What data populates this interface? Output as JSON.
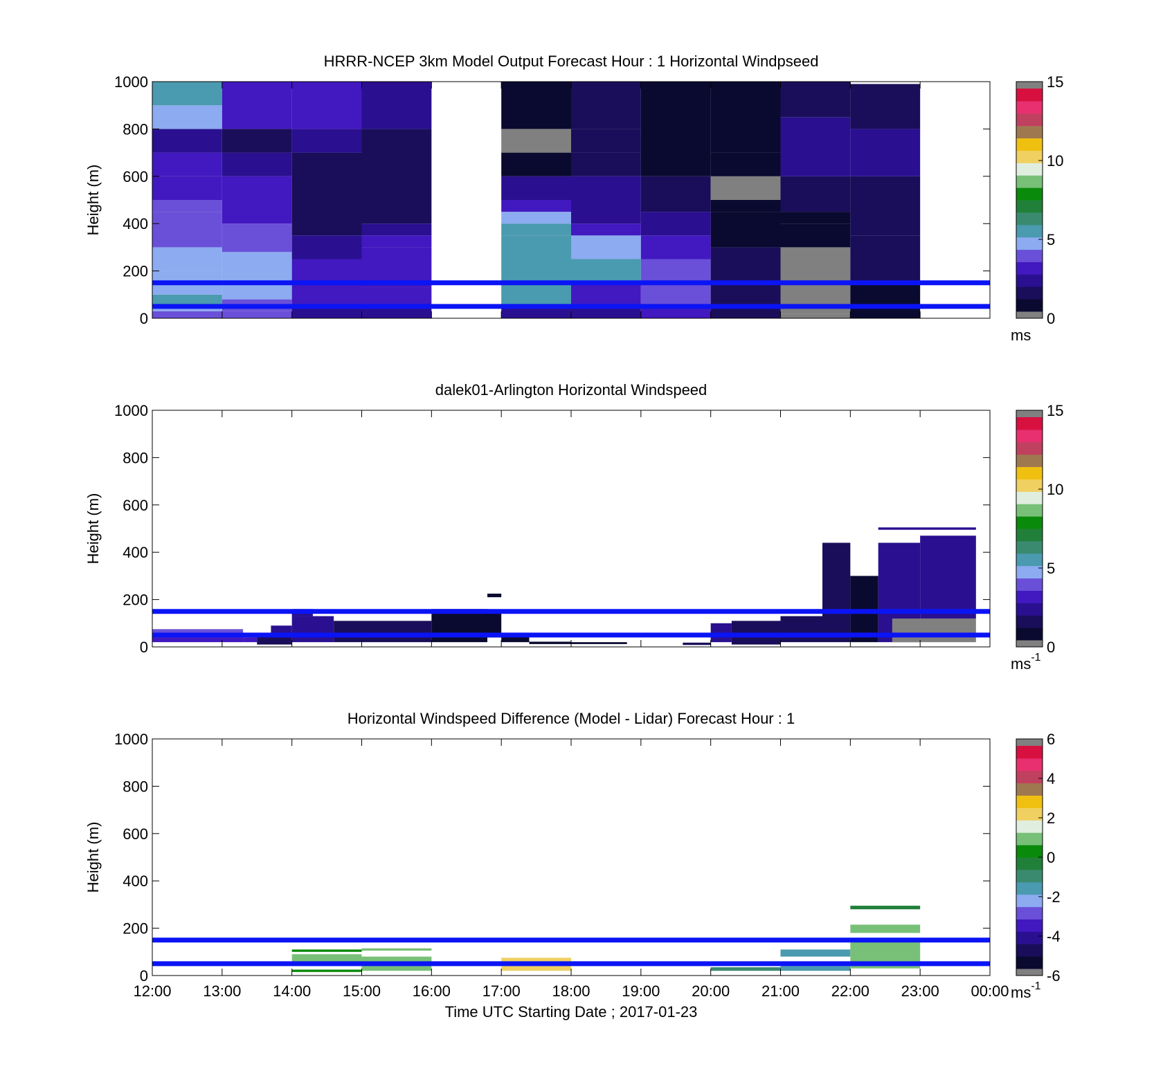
{
  "x_label": "Time UTC  Starting Date ; 2017-01-23",
  "x_ticks": [
    "12:00",
    "13:00",
    "14:00",
    "15:00",
    "16:00",
    "17:00",
    "18:00",
    "19:00",
    "20:00",
    "21:00",
    "22:00",
    "23:00",
    "00:00"
  ],
  "reference_lines": {
    "heights_m": [
      150,
      50
    ],
    "color": "#0a14f5"
  },
  "colormap": [
    "#0a0a30",
    "#1a0e5a",
    "#2a1090",
    "#4218c0",
    "#6a50d8",
    "#8cabf0",
    "#4a9ab0",
    "#3a8a70",
    "#20803a",
    "#0a8a0a",
    "#78c078",
    "#e0eee0",
    "#f0d060",
    "#f0c010",
    "#a07850",
    "#c04060",
    "#e83070",
    "#d81040"
  ],
  "chart_data": [
    {
      "type": "heatmap",
      "title": "HRRR-NCEP 3km Model Output   Forecast Hour : 1 Horizontal Windpseed",
      "ylabel": "Height (m)",
      "ylim": [
        0,
        1000
      ],
      "yticks": [
        "0",
        "200",
        "400",
        "600",
        "800",
        "1000"
      ],
      "colorbar": {
        "ticks": [
          "0",
          "5",
          "10",
          "15"
        ],
        "min": 0,
        "max": 15,
        "unit": "ms"
      },
      "columns": [
        {
          "t0": 12,
          "t1": 13,
          "bins": [
            {
              "h0": 0,
              "h1": 30,
              "v": 3.5
            },
            {
              "h0": 30,
              "h1": 60,
              "v": 4.5
            },
            {
              "h0": 60,
              "h1": 100,
              "v": 5.0
            },
            {
              "h0": 100,
              "h1": 200,
              "v": 4.8
            },
            {
              "h0": 200,
              "h1": 300,
              "v": 4.5
            },
            {
              "h0": 300,
              "h1": 450,
              "v": 4.0
            },
            {
              "h0": 450,
              "h1": 500,
              "v": 3.8
            },
            {
              "h0": 500,
              "h1": 600,
              "v": 3.3
            },
            {
              "h0": 600,
              "h1": 700,
              "v": 2.7
            },
            {
              "h0": 700,
              "h1": 800,
              "v": 2.2
            },
            {
              "h0": 800,
              "h1": 900,
              "v": 4.2
            },
            {
              "h0": 900,
              "h1": 1000,
              "v": 5.0
            }
          ]
        },
        {
          "t0": 13,
          "t1": 14,
          "bins": [
            {
              "h0": 0,
              "h1": 30,
              "v": 3.5
            },
            {
              "h0": 30,
              "h1": 80,
              "v": 3.8
            },
            {
              "h0": 80,
              "h1": 150,
              "v": 4.3
            },
            {
              "h0": 150,
              "h1": 280,
              "v": 4.5
            },
            {
              "h0": 280,
              "h1": 400,
              "v": 3.8
            },
            {
              "h0": 400,
              "h1": 500,
              "v": 3.3
            },
            {
              "h0": 500,
              "h1": 600,
              "v": 2.6
            },
            {
              "h0": 600,
              "h1": 700,
              "v": 1.8
            },
            {
              "h0": 700,
              "h1": 800,
              "v": 1.2
            },
            {
              "h0": 800,
              "h1": 1000,
              "v": 2.7
            },
            {
              "h0": 1000,
              "h1": 1000,
              "v": 0
            }
          ]
        },
        {
          "t0": 14,
          "t1": 15,
          "bins": [
            {
              "h0": 0,
              "h1": 50,
              "v": 2.3
            },
            {
              "h0": 50,
              "h1": 150,
              "v": 2.8
            },
            {
              "h0": 150,
              "h1": 250,
              "v": 2.5
            },
            {
              "h0": 250,
              "h1": 350,
              "v": 1.9
            },
            {
              "h0": 350,
              "h1": 500,
              "v": 1.5
            },
            {
              "h0": 500,
              "h1": 700,
              "v": 1.0
            },
            {
              "h0": 700,
              "h1": 800,
              "v": 1.8
            },
            {
              "h0": 800,
              "h1": 1000,
              "v": 2.8
            }
          ]
        },
        {
          "t0": 15,
          "t1": 16,
          "bins": [
            {
              "h0": 0,
              "h1": 50,
              "v": 2.3
            },
            {
              "h0": 50,
              "h1": 130,
              "v": 2.8
            },
            {
              "h0": 130,
              "h1": 300,
              "v": 3.2
            },
            {
              "h0": 300,
              "h1": 350,
              "v": 2.6
            },
            {
              "h0": 350,
              "h1": 400,
              "v": 2.0
            },
            {
              "h0": 400,
              "h1": 500,
              "v": 1.4
            },
            {
              "h0": 500,
              "h1": 800,
              "v": 1.1
            },
            {
              "h0": 800,
              "h1": 1000,
              "v": 2.2
            }
          ]
        },
        {
          "t0": 17,
          "t1": 18,
          "bins": [
            {
              "h0": 0,
              "h1": 50,
              "v": 2.3
            },
            {
              "h0": 50,
              "h1": 150,
              "v": 5.2
            },
            {
              "h0": 150,
              "h1": 350,
              "v": 5.6
            },
            {
              "h0": 350,
              "h1": 400,
              "v": 5.0
            },
            {
              "h0": 400,
              "h1": 450,
              "v": 4.2
            },
            {
              "h0": 450,
              "h1": 500,
              "v": 3.2
            },
            {
              "h0": 500,
              "h1": 600,
              "v": 1.9
            },
            {
              "h0": 600,
              "h1": 700,
              "v": 0.6
            },
            {
              "h0": 700,
              "h1": 800,
              "v": 15.8
            },
            {
              "h0": 800,
              "h1": 1000,
              "v": 0.2
            }
          ]
        },
        {
          "t0": 18,
          "t1": 19,
          "bins": [
            {
              "h0": 0,
              "h1": 50,
              "v": 2.1
            },
            {
              "h0": 50,
              "h1": 150,
              "v": 3.0
            },
            {
              "h0": 150,
              "h1": 250,
              "v": 5.1
            },
            {
              "h0": 250,
              "h1": 350,
              "v": 4.4
            },
            {
              "h0": 350,
              "h1": 400,
              "v": 3.1
            },
            {
              "h0": 400,
              "h1": 500,
              "v": 2.4
            },
            {
              "h0": 500,
              "h1": 600,
              "v": 1.8
            },
            {
              "h0": 600,
              "h1": 700,
              "v": 1.2
            },
            {
              "h0": 700,
              "h1": 800,
              "v": 0.9
            },
            {
              "h0": 800,
              "h1": 1000,
              "v": 1.1
            }
          ]
        },
        {
          "t0": 19,
          "t1": 20,
          "bins": [
            {
              "h0": 0,
              "h1": 50,
              "v": 2.8
            },
            {
              "h0": 50,
              "h1": 150,
              "v": 3.5
            },
            {
              "h0": 150,
              "h1": 250,
              "v": 3.6
            },
            {
              "h0": 250,
              "h1": 350,
              "v": 3.0
            },
            {
              "h0": 350,
              "h1": 450,
              "v": 1.8
            },
            {
              "h0": 450,
              "h1": 600,
              "v": 1.2
            },
            {
              "h0": 600,
              "h1": 1000,
              "v": 0.7
            }
          ]
        },
        {
          "t0": 20,
          "t1": 21,
          "bins": [
            {
              "h0": 0,
              "h1": 150,
              "v": 1.4
            },
            {
              "h0": 150,
              "h1": 300,
              "v": 1.6
            },
            {
              "h0": 300,
              "h1": 450,
              "v": 0.7
            },
            {
              "h0": 450,
              "h1": 500,
              "v": 0.3
            },
            {
              "h0": 500,
              "h1": 600,
              "v": 15.8
            },
            {
              "h0": 600,
              "h1": 700,
              "v": 0.2
            },
            {
              "h0": 700,
              "h1": 1000,
              "v": 0.7
            }
          ]
        },
        {
          "t0": 21,
          "t1": 22,
          "bins": [
            {
              "h0": 0,
              "h1": 20,
              "v": 15.8
            },
            {
              "h0": 20,
              "h1": 300,
              "v": 15.8
            },
            {
              "h0": 300,
              "h1": 400,
              "v": 0.2
            },
            {
              "h0": 400,
              "h1": 450,
              "v": 0.8
            },
            {
              "h0": 450,
              "h1": 600,
              "v": 1.4
            },
            {
              "h0": 600,
              "h1": 850,
              "v": 1.9
            },
            {
              "h0": 850,
              "h1": 1000,
              "v": 1.6
            }
          ]
        },
        {
          "t0": 22,
          "t1": 23,
          "bins": [
            {
              "h0": 0,
              "h1": 150,
              "v": 0.6
            },
            {
              "h0": 150,
              "h1": 350,
              "v": 1.2
            },
            {
              "h0": 350,
              "h1": 600,
              "v": 1.6
            },
            {
              "h0": 600,
              "h1": 800,
              "v": 1.9
            },
            {
              "h0": 800,
              "h1": 990,
              "v": 1.4
            }
          ]
        }
      ]
    },
    {
      "type": "heatmap",
      "title": "dalek01-Arlington  Horizontal Windspeed",
      "ylabel": "Height (m)",
      "ylim": [
        0,
        1000
      ],
      "yticks": [
        "0",
        "200",
        "400",
        "600",
        "800",
        "1000"
      ],
      "colorbar": {
        "ticks": [
          "0",
          "5",
          "10",
          "15"
        ],
        "min": 0,
        "max": 15,
        "unit": "ms",
        "exp": "-1"
      },
      "segments": [
        {
          "t0": 12.0,
          "t1": 13.3,
          "h0": 20,
          "h1": 40,
          "v": 2.6
        },
        {
          "t0": 12.0,
          "t1": 13.3,
          "h0": 40,
          "h1": 60,
          "v": 3.3
        },
        {
          "t0": 12.0,
          "t1": 13.3,
          "h0": 60,
          "h1": 75,
          "v": 3.4
        },
        {
          "t0": 13.3,
          "t1": 13.5,
          "h0": 20,
          "h1": 40,
          "v": 2.6
        },
        {
          "t0": 13.5,
          "t1": 14.0,
          "h0": 10,
          "h1": 50,
          "v": 1.6
        },
        {
          "t0": 13.7,
          "t1": 14.0,
          "h0": 50,
          "h1": 90,
          "v": 1.9
        },
        {
          "t0": 14.0,
          "t1": 14.6,
          "h0": 20,
          "h1": 130,
          "v": 1.8
        },
        {
          "t0": 14.0,
          "t1": 14.3,
          "h0": 130,
          "h1": 160,
          "v": 2.2
        },
        {
          "t0": 14.6,
          "t1": 15.0,
          "h0": 20,
          "h1": 110,
          "v": 1.2
        },
        {
          "t0": 15.0,
          "t1": 16.0,
          "h0": 20,
          "h1": 110,
          "v": 0.9
        },
        {
          "t0": 16.0,
          "t1": 16.8,
          "h0": 20,
          "h1": 160,
          "v": 0.7
        },
        {
          "t0": 16.8,
          "t1": 17.0,
          "h0": 40,
          "h1": 150,
          "v": 0.6
        },
        {
          "t0": 16.8,
          "t1": 17.0,
          "h0": 210,
          "h1": 225,
          "v": 0.3
        },
        {
          "t0": 17.0,
          "t1": 17.4,
          "h0": 20,
          "h1": 60,
          "v": 0.4
        },
        {
          "t0": 17.4,
          "t1": 18.0,
          "h0": 12,
          "h1": 22,
          "v": 0.5
        },
        {
          "t0": 18.0,
          "t1": 18.8,
          "h0": 12,
          "h1": 20,
          "v": 0.8
        },
        {
          "t0": 19.6,
          "t1": 20.0,
          "h0": 8,
          "h1": 18,
          "v": 1.0
        },
        {
          "t0": 20.0,
          "t1": 20.3,
          "h0": 20,
          "h1": 100,
          "v": 1.9
        },
        {
          "t0": 20.3,
          "t1": 21.0,
          "h0": 10,
          "h1": 110,
          "v": 1.0
        },
        {
          "t0": 21.0,
          "t1": 21.6,
          "h0": 20,
          "h1": 130,
          "v": 0.9
        },
        {
          "t0": 21.6,
          "t1": 22.0,
          "h0": 20,
          "h1": 440,
          "v": 1.1
        },
        {
          "t0": 22.0,
          "t1": 22.4,
          "h0": 20,
          "h1": 300,
          "v": 0.6
        },
        {
          "t0": 22.4,
          "t1": 23.0,
          "h0": 20,
          "h1": 440,
          "v": 2.0
        },
        {
          "t0": 22.6,
          "t1": 23.8,
          "h0": 20,
          "h1": 120,
          "v": 15.8
        },
        {
          "t0": 23.0,
          "t1": 23.8,
          "h0": 120,
          "h1": 470,
          "v": 1.8
        },
        {
          "t0": 22.4,
          "t1": 23.8,
          "h0": 495,
          "h1": 505,
          "v": 2.0
        }
      ]
    },
    {
      "type": "heatmap",
      "title": "Horizontal Windspeed Difference (Model - Lidar) Forecast Hour : 1",
      "ylabel": "Height (m)",
      "ylim": [
        0,
        1000
      ],
      "yticks": [
        "0",
        "200",
        "400",
        "600",
        "800",
        "1000"
      ],
      "colorbar": {
        "ticks": [
          "-6",
          "-4",
          "-2",
          "0",
          "2",
          "4",
          "6"
        ],
        "min": -6,
        "max": 6,
        "unit": "ms",
        "exp": "-1"
      },
      "segments": [
        {
          "t0": 14.0,
          "t1": 15.0,
          "h0": 100,
          "h1": 110,
          "v": 0.4
        },
        {
          "t0": 14.0,
          "t1": 15.0,
          "h0": 40,
          "h1": 90,
          "v": 1.1
        },
        {
          "t0": 14.0,
          "t1": 15.0,
          "h0": 15,
          "h1": 25,
          "v": 0.3
        },
        {
          "t0": 15.0,
          "t1": 16.0,
          "h0": 105,
          "h1": 115,
          "v": 1.2
        },
        {
          "t0": 15.0,
          "t1": 16.0,
          "h0": 20,
          "h1": 80,
          "v": 1.3
        },
        {
          "t0": 17.0,
          "t1": 18.0,
          "h0": 20,
          "h1": 75,
          "v": 2.6
        },
        {
          "t0": 20.0,
          "t1": 21.0,
          "h0": 20,
          "h1": 35,
          "v": -1.2
        },
        {
          "t0": 21.0,
          "t1": 22.0,
          "h0": 80,
          "h1": 110,
          "v": -1.8
        },
        {
          "t0": 21.0,
          "t1": 22.0,
          "h0": 20,
          "h1": 40,
          "v": -1.4
        },
        {
          "t0": 22.0,
          "t1": 23.0,
          "h0": 280,
          "h1": 295,
          "v": -0.5
        },
        {
          "t0": 22.0,
          "t1": 23.0,
          "h0": 180,
          "h1": 215,
          "v": 1.3
        },
        {
          "t0": 22.0,
          "t1": 23.0,
          "h0": 30,
          "h1": 150,
          "v": 1.0
        }
      ]
    }
  ]
}
